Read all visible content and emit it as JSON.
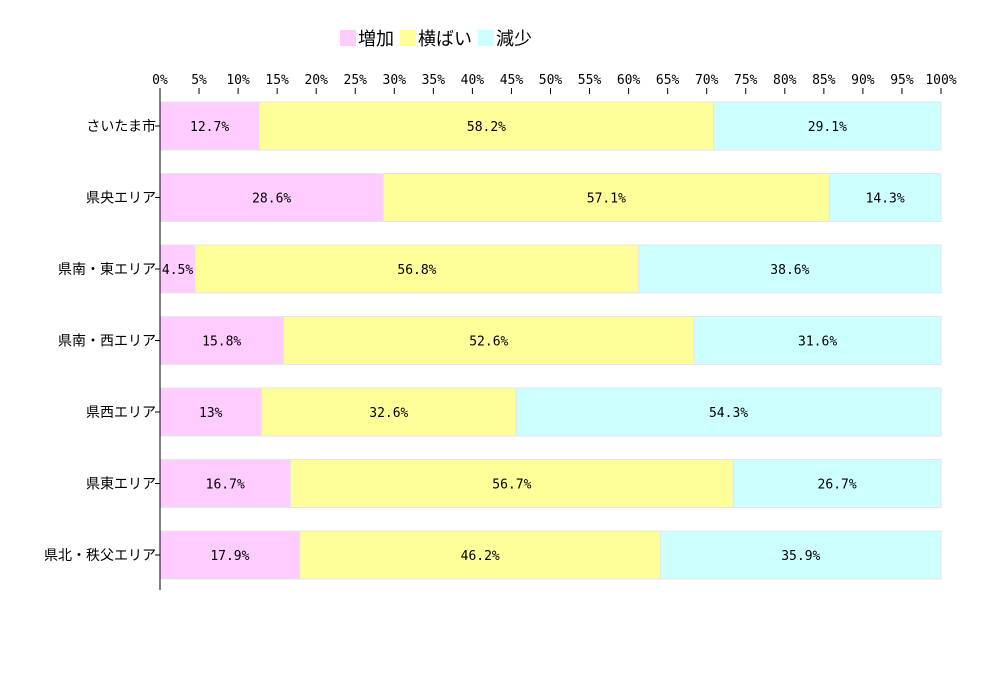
{
  "chart_data": {
    "type": "bar",
    "orientation": "horizontal",
    "stacked": true,
    "categories": [
      "さいたま市",
      "県央エリア",
      "県南・東エリア",
      "県南・西エリア",
      "県西エリア",
      "県東エリア",
      "県北・秩父エリア"
    ],
    "series": [
      {
        "name": "増加",
        "color": "#ffccff",
        "values": [
          12.7,
          28.6,
          4.5,
          15.8,
          13,
          16.7,
          17.9
        ],
        "labels": [
          "12.7%",
          "28.6%",
          "4.5%",
          "15.8%",
          "13%",
          "16.7%",
          "17.9%"
        ]
      },
      {
        "name": "横ばい",
        "color": "#ffff99",
        "values": [
          58.2,
          57.1,
          56.8,
          52.6,
          32.6,
          56.7,
          46.2
        ],
        "labels": [
          "58.2%",
          "57.1%",
          "56.8%",
          "52.6%",
          "32.6%",
          "56.7%",
          "46.2%"
        ]
      },
      {
        "name": "減少",
        "color": "#ccffff",
        "values": [
          29.1,
          14.3,
          38.6,
          31.6,
          54.3,
          26.7,
          35.9
        ],
        "labels": [
          "29.1%",
          "14.3%",
          "38.6%",
          "31.6%",
          "54.3%",
          "26.7%",
          "35.9%"
        ]
      }
    ],
    "xlim": [
      0,
      100
    ],
    "xticks": [
      "0%",
      "5%",
      "10%",
      "15%",
      "20%",
      "25%",
      "30%",
      "35%",
      "40%",
      "45%",
      "50%",
      "55%",
      "60%",
      "65%",
      "70%",
      "75%",
      "80%",
      "85%",
      "90%",
      "95%",
      "100%"
    ],
    "legend_position": "top",
    "grid": false
  }
}
